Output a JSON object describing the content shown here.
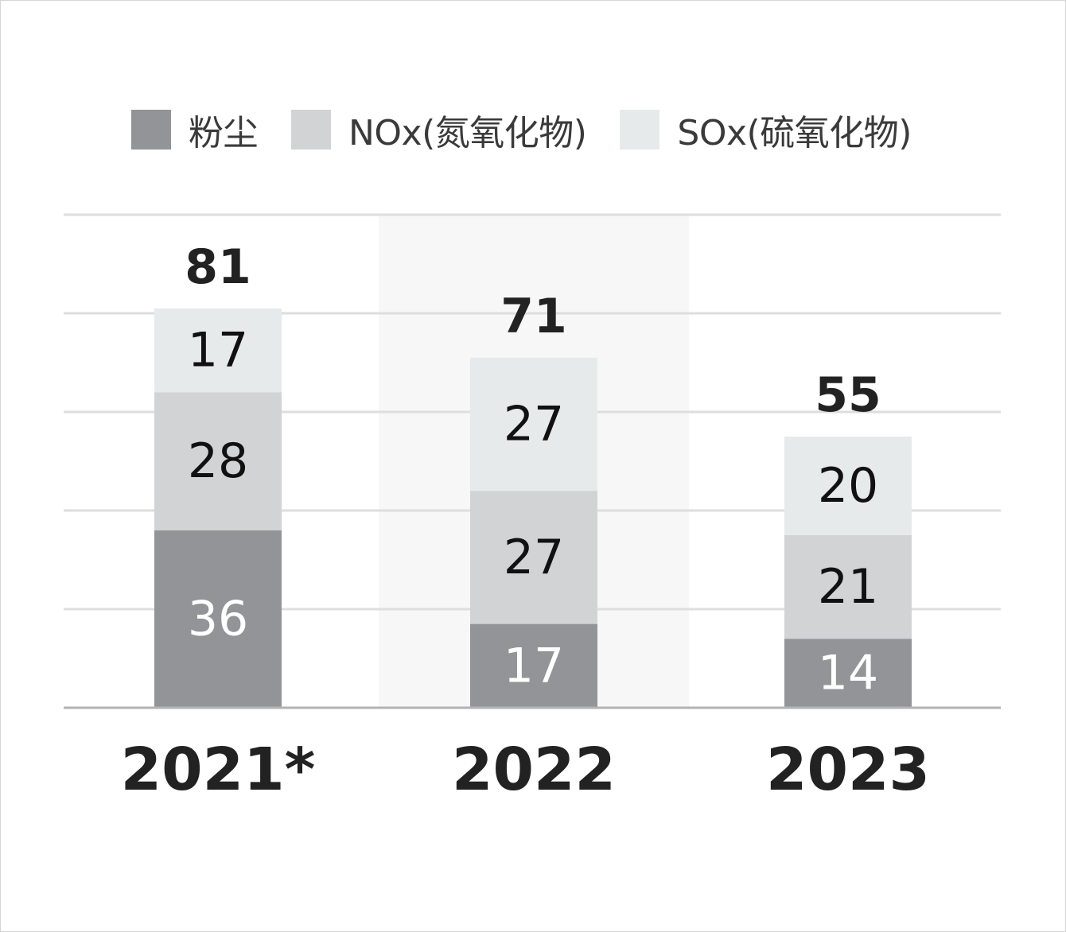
{
  "chart_data": {
    "type": "bar",
    "stacked": true,
    "categories": [
      "2021*",
      "2022",
      "2023"
    ],
    "series": [
      {
        "name": "粉尘",
        "color": "#939497",
        "label_color": "#ffffff",
        "values": [
          36,
          17,
          14
        ]
      },
      {
        "name": "NOx(氮氧化物)",
        "color": "#d2d3d5",
        "label_color": "#111111",
        "values": [
          28,
          27,
          21
        ]
      },
      {
        "name": "SOx(硫氧化物)",
        "color": "#e7eaeb",
        "label_color": "#111111",
        "values": [
          17,
          27,
          20
        ]
      }
    ],
    "totals": [
      81,
      71,
      55
    ],
    "ylim": [
      0,
      100
    ],
    "grid": true,
    "highlight_category": "2022",
    "legend_position": "top-left",
    "title": "",
    "xlabel": "",
    "ylabel": ""
  }
}
